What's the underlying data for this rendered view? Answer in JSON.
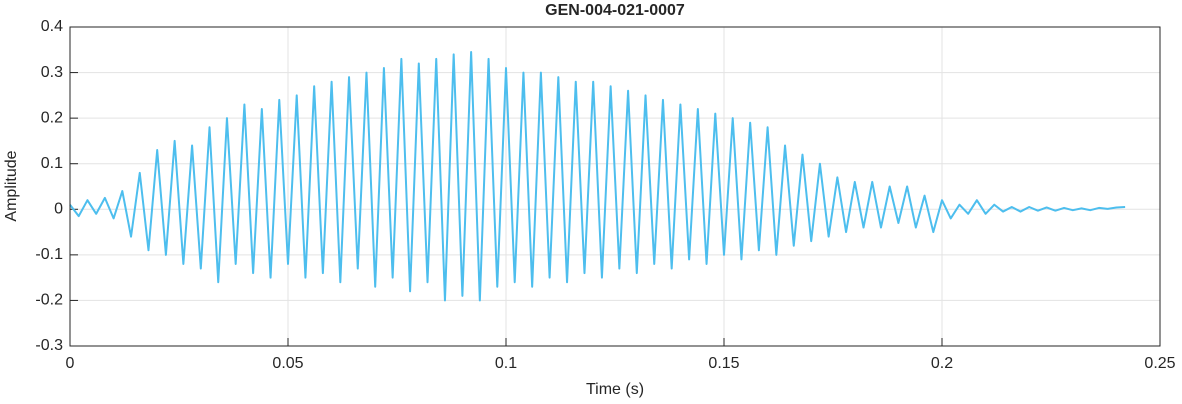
{
  "chart_data": {
    "type": "line",
    "title": "GEN-004-021-0007",
    "xlabel": "Time (s)",
    "ylabel": "Amplitude",
    "color": "#4dbeee",
    "grid": true,
    "xlim": [
      0,
      0.25
    ],
    "xticks": [
      0,
      0.05,
      0.1,
      0.15,
      0.2,
      0.25
    ],
    "ylim": [
      -0.3,
      0.4
    ],
    "yticks": [
      -0.3,
      -0.2,
      -0.1,
      0,
      0.1,
      0.2,
      0.3,
      0.4
    ],
    "x": [
      0,
      0.002,
      0.004,
      0.006,
      0.008,
      0.01,
      0.012,
      0.014,
      0.016,
      0.018,
      0.02,
      0.022,
      0.024,
      0.026,
      0.028,
      0.03,
      0.032,
      0.034,
      0.036,
      0.038,
      0.04,
      0.042,
      0.044,
      0.046,
      0.048,
      0.05,
      0.052,
      0.054,
      0.056,
      0.058,
      0.06,
      0.062,
      0.064,
      0.066,
      0.068,
      0.07,
      0.072,
      0.074,
      0.076,
      0.078,
      0.08,
      0.082,
      0.084,
      0.086,
      0.088,
      0.09,
      0.092,
      0.094,
      0.096,
      0.098,
      0.1,
      0.102,
      0.104,
      0.106,
      0.108,
      0.11,
      0.112,
      0.114,
      0.116,
      0.118,
      0.12,
      0.122,
      0.124,
      0.126,
      0.128,
      0.13,
      0.132,
      0.134,
      0.136,
      0.138,
      0.14,
      0.142,
      0.144,
      0.146,
      0.148,
      0.15,
      0.152,
      0.154,
      0.156,
      0.158,
      0.16,
      0.162,
      0.164,
      0.166,
      0.168,
      0.17,
      0.172,
      0.174,
      0.176,
      0.178,
      0.18,
      0.182,
      0.184,
      0.186,
      0.188,
      0.19,
      0.192,
      0.194,
      0.196,
      0.198,
      0.2,
      0.202,
      0.204,
      0.206,
      0.208,
      0.21,
      0.212,
      0.214,
      0.216,
      0.218,
      0.22,
      0.222,
      0.224,
      0.226,
      0.228,
      0.23,
      0.232,
      0.234,
      0.236,
      0.238,
      0.24,
      0.242
    ],
    "values": [
      0.01,
      -0.015,
      0.02,
      -0.01,
      0.025,
      -0.02,
      0.04,
      -0.06,
      0.08,
      -0.09,
      0.13,
      -0.1,
      0.15,
      -0.12,
      0.14,
      -0.13,
      0.18,
      -0.16,
      0.2,
      -0.12,
      0.23,
      -0.14,
      0.22,
      -0.15,
      0.24,
      -0.12,
      0.25,
      -0.15,
      0.27,
      -0.14,
      0.28,
      -0.16,
      0.29,
      -0.13,
      0.3,
      -0.17,
      0.31,
      -0.15,
      0.33,
      -0.18,
      0.32,
      -0.16,
      0.33,
      -0.2,
      0.34,
      -0.19,
      0.345,
      -0.2,
      0.33,
      -0.17,
      0.31,
      -0.16,
      0.3,
      -0.17,
      0.3,
      -0.15,
      0.29,
      -0.16,
      0.28,
      -0.14,
      0.28,
      -0.15,
      0.27,
      -0.13,
      0.26,
      -0.14,
      0.25,
      -0.12,
      0.24,
      -0.13,
      0.23,
      -0.11,
      0.22,
      -0.12,
      0.21,
      -0.1,
      0.2,
      -0.11,
      0.19,
      -0.09,
      0.18,
      -0.1,
      0.14,
      -0.08,
      0.12,
      -0.07,
      0.1,
      -0.06,
      0.07,
      -0.05,
      0.06,
      -0.04,
      0.06,
      -0.04,
      0.05,
      -0.03,
      0.05,
      -0.04,
      0.03,
      -0.05,
      0.02,
      -0.02,
      0.01,
      -0.01,
      0.02,
      -0.01,
      0.01,
      -0.005,
      0.005,
      -0.005,
      0.005,
      -0.003,
      0.004,
      -0.003,
      0.003,
      -0.002,
      0.002,
      -0.002,
      0.003,
      0.001,
      0.004,
      0.005
    ]
  }
}
